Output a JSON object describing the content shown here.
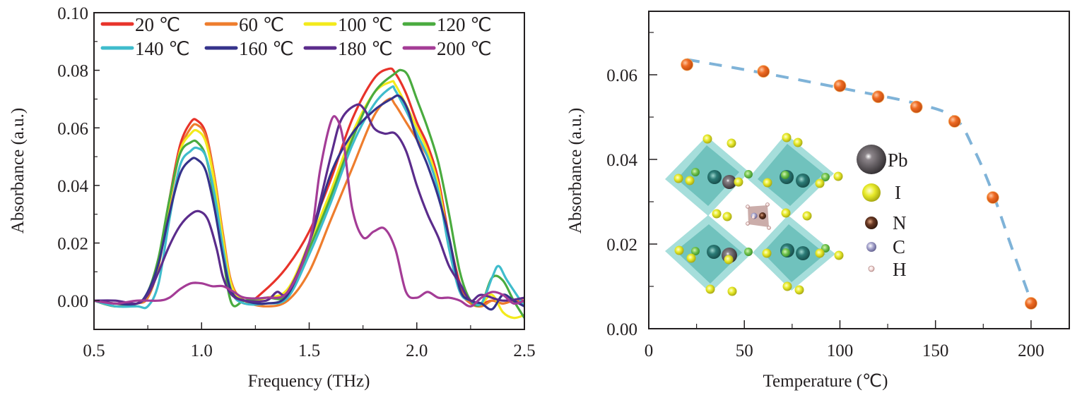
{
  "chart_data": [
    {
      "type": "line",
      "title": "",
      "xlabel": "Frequency (THz)",
      "ylabel": "Absorbance (a.u.)",
      "xlim": [
        0.5,
        2.5
      ],
      "ylim": [
        -0.01,
        0.1
      ],
      "xticks": [
        "0.5",
        "1.0",
        "1.5",
        "2.0",
        "2.5"
      ],
      "xtick_values": [
        0.5,
        1.0,
        1.5,
        2.0,
        2.5
      ],
      "yticks": [
        "0.00",
        "0.02",
        "0.04",
        "0.06",
        "0.08",
        "0.10"
      ],
      "ytick_values": [
        0,
        0.02,
        0.04,
        0.06,
        0.08,
        0.1
      ],
      "grid": false,
      "legend_position": "top",
      "series": [
        {
          "name": "20 ℃",
          "color": "#e8332a",
          "x": [
            0.5,
            0.6,
            0.7,
            0.75,
            0.8,
            0.85,
            0.9,
            0.95,
            0.98,
            1.02,
            1.06,
            1.1,
            1.14,
            1.2,
            1.3,
            1.4,
            1.5,
            1.6,
            1.7,
            1.8,
            1.87,
            1.9,
            1.95,
            2.0,
            2.05,
            2.1,
            2.15,
            2.2,
            2.25,
            2.3,
            2.35,
            2.4,
            2.45,
            2.5
          ],
          "y": [
            0.0,
            -0.001,
            -0.001,
            0.002,
            0.014,
            0.035,
            0.054,
            0.062,
            0.0625,
            0.058,
            0.043,
            0.022,
            0.006,
            -0.001,
            0.004,
            0.012,
            0.024,
            0.042,
            0.063,
            0.077,
            0.0805,
            0.079,
            0.072,
            0.062,
            0.054,
            0.042,
            0.022,
            0.006,
            0.0,
            -0.001,
            0.0,
            -0.001,
            0.0,
            0.0
          ]
        },
        {
          "name": "60 ℃",
          "color": "#ee7d2d",
          "x": [
            0.5,
            0.6,
            0.7,
            0.75,
            0.8,
            0.85,
            0.9,
            0.95,
            0.98,
            1.02,
            1.06,
            1.1,
            1.14,
            1.2,
            1.3,
            1.4,
            1.5,
            1.6,
            1.7,
            1.8,
            1.87,
            1.9,
            1.95,
            2.0,
            2.05,
            2.1,
            2.15,
            2.2,
            2.25,
            2.3,
            2.35,
            2.4,
            2.45,
            2.5
          ],
          "y": [
            0.0,
            -0.002,
            -0.001,
            0.001,
            0.012,
            0.033,
            0.052,
            0.06,
            0.061,
            0.057,
            0.043,
            0.023,
            0.006,
            0.0,
            -0.002,
            0.0,
            0.01,
            0.028,
            0.046,
            0.064,
            0.07,
            0.068,
            0.062,
            0.056,
            0.05,
            0.04,
            0.02,
            0.004,
            -0.001,
            -0.002,
            0.0,
            -0.001,
            0.0,
            -0.001
          ]
        },
        {
          "name": "100 ℃",
          "color": "#f3ea1b",
          "x": [
            0.5,
            0.6,
            0.7,
            0.75,
            0.8,
            0.85,
            0.9,
            0.95,
            0.98,
            1.02,
            1.06,
            1.1,
            1.14,
            1.2,
            1.3,
            1.4,
            1.5,
            1.6,
            1.7,
            1.8,
            1.88,
            1.9,
            1.95,
            2.0,
            2.05,
            2.1,
            2.15,
            2.2,
            2.25,
            2.3,
            2.35,
            2.4,
            2.45,
            2.5
          ],
          "y": [
            0.0,
            -0.001,
            -0.001,
            0.002,
            0.013,
            0.034,
            0.052,
            0.058,
            0.059,
            0.055,
            0.041,
            0.021,
            0.005,
            0.0,
            0.001,
            0.004,
            0.02,
            0.038,
            0.058,
            0.072,
            0.076,
            0.075,
            0.068,
            0.06,
            0.052,
            0.04,
            0.02,
            0.004,
            0.0,
            -0.001,
            0.002,
            -0.004,
            -0.006,
            -0.005
          ]
        },
        {
          "name": "120 ℃",
          "color": "#4aab3f",
          "x": [
            0.5,
            0.6,
            0.7,
            0.75,
            0.8,
            0.85,
            0.9,
            0.95,
            0.98,
            1.02,
            1.06,
            1.1,
            1.14,
            1.2,
            1.3,
            1.4,
            1.5,
            1.6,
            1.7,
            1.8,
            1.9,
            1.93,
            1.96,
            2.0,
            2.05,
            2.1,
            2.15,
            2.2,
            2.25,
            2.3,
            2.35,
            2.4,
            2.45,
            2.5
          ],
          "y": [
            0.0,
            -0.002,
            -0.001,
            0.003,
            0.015,
            0.035,
            0.051,
            0.055,
            0.055,
            0.05,
            0.035,
            0.015,
            -0.001,
            0.0,
            0.001,
            0.002,
            0.018,
            0.036,
            0.056,
            0.072,
            0.079,
            0.08,
            0.078,
            0.07,
            0.06,
            0.048,
            0.03,
            0.01,
            0.0,
            -0.001,
            0.008,
            0.007,
            0.0,
            -0.006
          ]
        },
        {
          "name": "140 ℃",
          "color": "#3fbccc",
          "x": [
            0.5,
            0.6,
            0.7,
            0.75,
            0.8,
            0.85,
            0.9,
            0.95,
            0.98,
            1.02,
            1.06,
            1.1,
            1.14,
            1.2,
            1.3,
            1.4,
            1.5,
            1.6,
            1.7,
            1.8,
            1.88,
            1.9,
            1.95,
            2.0,
            2.05,
            2.1,
            2.15,
            2.2,
            2.25,
            2.3,
            2.35,
            2.38,
            2.42,
            2.5
          ],
          "y": [
            0.0,
            -0.002,
            -0.002,
            -0.002,
            0.006,
            0.028,
            0.047,
            0.052,
            0.053,
            0.05,
            0.037,
            0.018,
            0.003,
            -0.001,
            -0.001,
            0.001,
            0.016,
            0.034,
            0.054,
            0.068,
            0.074,
            0.073,
            0.066,
            0.058,
            0.05,
            0.038,
            0.018,
            0.003,
            0.0,
            -0.001,
            0.008,
            0.012,
            0.007,
            -0.002
          ]
        },
        {
          "name": "160 ℃",
          "color": "#35338b",
          "x": [
            0.5,
            0.6,
            0.7,
            0.75,
            0.8,
            0.85,
            0.9,
            0.95,
            0.98,
            1.02,
            1.06,
            1.1,
            1.14,
            1.2,
            1.3,
            1.4,
            1.5,
            1.6,
            1.7,
            1.8,
            1.88,
            1.92,
            1.96,
            2.0,
            2.05,
            2.1,
            2.15,
            2.2,
            2.25,
            2.3,
            2.35,
            2.4,
            2.45,
            2.5
          ],
          "y": [
            0.0,
            -0.001,
            -0.001,
            0.003,
            0.013,
            0.03,
            0.044,
            0.049,
            0.049,
            0.045,
            0.032,
            0.015,
            0.003,
            0.0,
            -0.001,
            0.002,
            0.02,
            0.044,
            0.058,
            0.066,
            0.07,
            0.071,
            0.066,
            0.056,
            0.047,
            0.036,
            0.022,
            0.004,
            0.0,
            -0.001,
            -0.003,
            0.002,
            0.0,
            -0.002
          ]
        },
        {
          "name": "180 ℃",
          "color": "#5b2c8c",
          "x": [
            0.5,
            0.6,
            0.7,
            0.75,
            0.8,
            0.85,
            0.9,
            0.95,
            0.99,
            1.03,
            1.07,
            1.1,
            1.14,
            1.2,
            1.3,
            1.35,
            1.4,
            1.5,
            1.6,
            1.65,
            1.72,
            1.76,
            1.8,
            1.85,
            1.9,
            1.95,
            2.0,
            2.05,
            2.1,
            2.15,
            2.2,
            2.25,
            2.3,
            2.4,
            2.5
          ],
          "y": [
            0.0,
            0.0,
            -0.001,
            0.002,
            0.01,
            0.019,
            0.026,
            0.03,
            0.031,
            0.028,
            0.018,
            0.008,
            0.002,
            0.0,
            0.0,
            0.003,
            0.003,
            0.02,
            0.05,
            0.063,
            0.068,
            0.066,
            0.06,
            0.058,
            0.058,
            0.052,
            0.04,
            0.03,
            0.022,
            0.012,
            0.006,
            0.0,
            0.002,
            0.0,
            0.001
          ]
        },
        {
          "name": "200 ℃",
          "color": "#a43c96",
          "x": [
            0.5,
            0.6,
            0.7,
            0.8,
            0.85,
            0.9,
            0.95,
            1.0,
            1.05,
            1.1,
            1.15,
            1.2,
            1.3,
            1.4,
            1.5,
            1.55,
            1.6,
            1.63,
            1.66,
            1.7,
            1.75,
            1.8,
            1.85,
            1.9,
            1.95,
            2.0,
            2.05,
            2.1,
            2.15,
            2.2,
            2.25,
            2.3,
            2.35,
            2.4,
            2.45,
            2.5
          ],
          "y": [
            0.0,
            -0.001,
            0.0,
            0.0,
            0.001,
            0.004,
            0.006,
            0.006,
            0.005,
            0.005,
            0.003,
            0.001,
            0.001,
            0.003,
            0.02,
            0.045,
            0.062,
            0.063,
            0.055,
            0.032,
            0.022,
            0.024,
            0.025,
            0.018,
            0.003,
            0.001,
            0.003,
            0.001,
            0.001,
            0.0,
            -0.002,
            0.001,
            0.003,
            0.002,
            -0.001,
            0.0
          ]
        }
      ]
    },
    {
      "type": "scatter",
      "title": "",
      "xlabel": "Temperature (℃)",
      "ylabel": "Absorbance (a.u.)",
      "xlim": [
        0,
        220
      ],
      "ylim": [
        0,
        0.075
      ],
      "xticks": [
        "0",
        "50",
        "100",
        "150",
        "200"
      ],
      "xtick_values": [
        0,
        50,
        100,
        150,
        200
      ],
      "yticks": [
        "0.00",
        "0.02",
        "0.04",
        "0.06"
      ],
      "ytick_values": [
        0,
        0.02,
        0.04,
        0.06
      ],
      "grid": false,
      "marker_color": "#ee6a22",
      "fit_line_color": "#7fb3d8",
      "points": {
        "x": [
          20,
          60,
          100,
          120,
          140,
          160,
          180,
          200
        ],
        "y": [
          0.0624,
          0.0608,
          0.0574,
          0.0548,
          0.0524,
          0.049,
          0.031,
          0.006
        ]
      },
      "fit_line": {
        "style": "dashed",
        "x": [
          20,
          60,
          100,
          140,
          160,
          170,
          180,
          190,
          200
        ],
        "y": [
          0.0636,
          0.0604,
          0.0569,
          0.0532,
          0.0498,
          0.0425,
          0.032,
          0.019,
          0.0065
        ]
      },
      "inset": {
        "description": "crystal structure",
        "legend": [
          {
            "label": "Pb",
            "color": "#4b4449"
          },
          {
            "label": "I",
            "color": "#dfe123"
          },
          {
            "label": "N",
            "color": "#6b3a25"
          },
          {
            "label": "C",
            "color": "#a9a7cf"
          },
          {
            "label": "H",
            "color": "#f2d6d4"
          }
        ]
      }
    }
  ]
}
